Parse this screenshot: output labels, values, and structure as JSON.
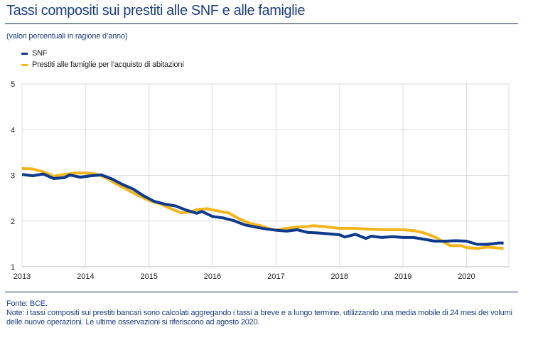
{
  "header": {
    "title": "Tassi compositi sui prestiti alle SNF e alle famiglie"
  },
  "chart_data": {
    "type": "line",
    "title": "Tassi compositi sui prestiti alle SNF e alle famiglie",
    "subtitle": "(valori percentuali in ragione d’anno)",
    "ylim": [
      1,
      5
    ],
    "yticks": [
      "1",
      "2",
      "3",
      "4",
      "5"
    ],
    "xlim": [
      "2013-01",
      "2020-09"
    ],
    "xticks": [
      "2013",
      "2014",
      "2015",
      "2016",
      "2017",
      "2018",
      "2019",
      "2020"
    ],
    "grid": true,
    "legend_position": "top-left",
    "series": [
      {
        "name": "SNF",
        "color": "#0d3a8c",
        "points": [
          [
            "2013-01",
            3.02
          ],
          [
            "2013-03",
            2.99
          ],
          [
            "2013-05",
            3.03
          ],
          [
            "2013-07",
            2.93
          ],
          [
            "2013-09",
            2.95
          ],
          [
            "2013-10",
            3.01
          ],
          [
            "2013-12",
            2.96
          ],
          [
            "2014-02",
            2.99
          ],
          [
            "2014-04",
            3.01
          ],
          [
            "2014-06",
            2.92
          ],
          [
            "2014-08",
            2.8
          ],
          [
            "2014-10",
            2.7
          ],
          [
            "2014-12",
            2.55
          ],
          [
            "2015-02",
            2.43
          ],
          [
            "2015-04",
            2.37
          ],
          [
            "2015-06",
            2.33
          ],
          [
            "2015-08",
            2.24
          ],
          [
            "2015-10",
            2.17
          ],
          [
            "2015-11",
            2.21
          ],
          [
            "2016-01",
            2.1
          ],
          [
            "2016-03",
            2.07
          ],
          [
            "2016-05",
            2.01
          ],
          [
            "2016-07",
            1.92
          ],
          [
            "2016-09",
            1.87
          ],
          [
            "2016-11",
            1.83
          ],
          [
            "2017-01",
            1.8
          ],
          [
            "2017-03",
            1.78
          ],
          [
            "2017-05",
            1.81
          ],
          [
            "2017-07",
            1.75
          ],
          [
            "2017-09",
            1.74
          ],
          [
            "2017-11",
            1.72
          ],
          [
            "2018-01",
            1.7
          ],
          [
            "2018-02",
            1.65
          ],
          [
            "2018-04",
            1.71
          ],
          [
            "2018-06",
            1.62
          ],
          [
            "2018-07",
            1.67
          ],
          [
            "2018-09",
            1.64
          ],
          [
            "2018-11",
            1.66
          ],
          [
            "2019-01",
            1.64
          ],
          [
            "2019-03",
            1.64
          ],
          [
            "2019-05",
            1.6
          ],
          [
            "2019-07",
            1.56
          ],
          [
            "2019-09",
            1.56
          ],
          [
            "2019-11",
            1.57
          ],
          [
            "2020-01",
            1.56
          ],
          [
            "2020-03",
            1.49
          ],
          [
            "2020-05",
            1.49
          ],
          [
            "2020-07",
            1.52
          ],
          [
            "2020-08",
            1.52
          ]
        ]
      },
      {
        "name": "Prestiti alle famiglie per l’acquisto di abitazioni",
        "color": "#f2b51c",
        "points": [
          [
            "2013-01",
            3.15
          ],
          [
            "2013-03",
            3.14
          ],
          [
            "2013-05",
            3.08
          ],
          [
            "2013-07",
            2.98
          ],
          [
            "2013-09",
            3.02
          ],
          [
            "2013-11",
            3.05
          ],
          [
            "2014-01",
            3.05
          ],
          [
            "2014-03",
            3.03
          ],
          [
            "2014-05",
            2.94
          ],
          [
            "2014-07",
            2.8
          ],
          [
            "2014-09",
            2.68
          ],
          [
            "2014-11",
            2.56
          ],
          [
            "2015-01",
            2.45
          ],
          [
            "2015-03",
            2.38
          ],
          [
            "2015-05",
            2.28
          ],
          [
            "2015-07",
            2.18
          ],
          [
            "2015-09",
            2.2
          ],
          [
            "2015-10",
            2.25
          ],
          [
            "2015-12",
            2.27
          ],
          [
            "2016-02",
            2.22
          ],
          [
            "2016-04",
            2.18
          ],
          [
            "2016-06",
            2.05
          ],
          [
            "2016-08",
            1.95
          ],
          [
            "2016-10",
            1.9
          ],
          [
            "2016-12",
            1.82
          ],
          [
            "2017-01",
            1.8
          ],
          [
            "2017-03",
            1.84
          ],
          [
            "2017-05",
            1.87
          ],
          [
            "2017-07",
            1.88
          ],
          [
            "2017-08",
            1.9
          ],
          [
            "2017-10",
            1.88
          ],
          [
            "2018-01",
            1.84
          ],
          [
            "2018-04",
            1.84
          ],
          [
            "2018-07",
            1.82
          ],
          [
            "2018-10",
            1.81
          ],
          [
            "2019-01",
            1.81
          ],
          [
            "2019-03",
            1.79
          ],
          [
            "2019-05",
            1.74
          ],
          [
            "2019-07",
            1.65
          ],
          [
            "2019-09",
            1.52
          ],
          [
            "2019-10",
            1.46
          ],
          [
            "2019-12",
            1.46
          ],
          [
            "2020-01",
            1.42
          ],
          [
            "2020-03",
            1.4
          ],
          [
            "2020-05",
            1.43
          ],
          [
            "2020-08",
            1.4
          ]
        ]
      }
    ]
  },
  "footer": {
    "source": "Fonte: BCE.",
    "note": "Note: i tassi compositi sui prestiti bancari sono calcolati aggregando i tassi a breve e a lungo termine, utilizzando una media mobile di 24 mesi dei volumi delle nuove operazioni. Le ultime osservazioni si riferiscono ad agosto 2020."
  }
}
